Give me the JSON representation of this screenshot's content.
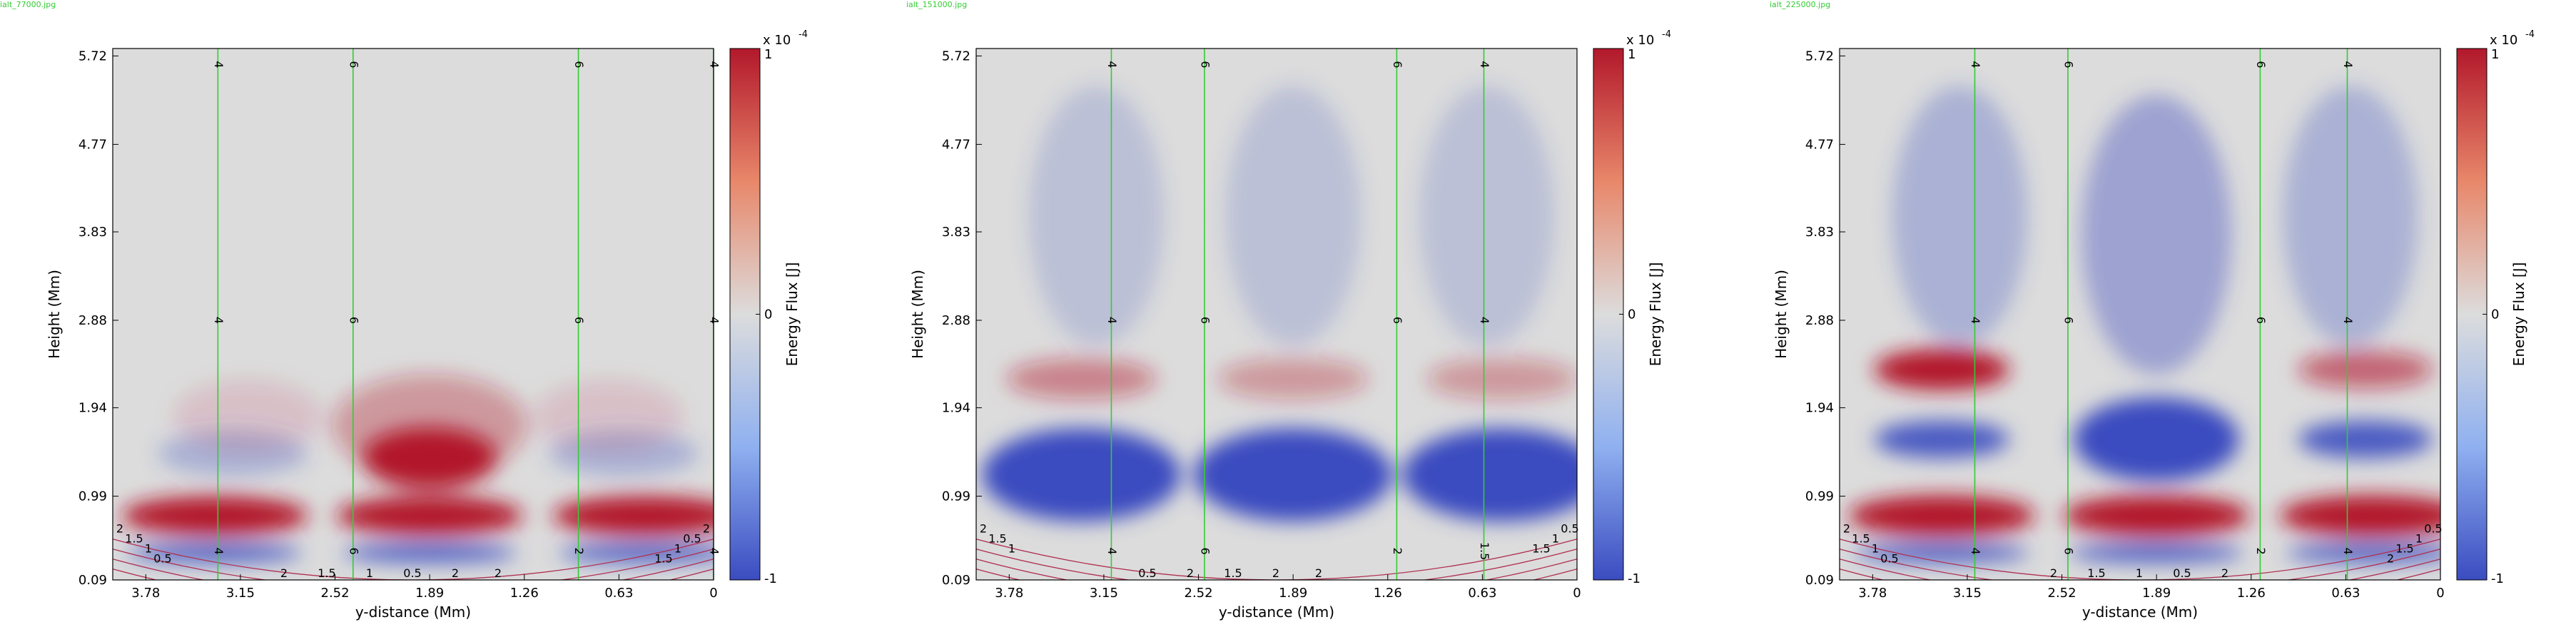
{
  "colors": {
    "background": "#ffffff",
    "neutral": "#dcdcdc",
    "positive": "#b2182b",
    "negative": "#3b4cc0",
    "field_line": "#33cc33",
    "contour": "#b03050",
    "panel_label": "#33cc33"
  },
  "chart_data": [
    {
      "type": "heatmap",
      "panel_label": "ialt_77000.jpg",
      "xlabel": "y-distance (Mm)",
      "ylabel": "Height (Mm)",
      "xticks": [
        "3.78",
        "3.15",
        "2.52",
        "1.89",
        "1.26",
        "0.63",
        "0"
      ],
      "yticks": [
        "0.09",
        "0.99",
        "1.94",
        "2.88",
        "3.83",
        "4.77",
        "5.72"
      ],
      "xlim": [
        4.0,
        0.0
      ],
      "ylim": [
        0.09,
        5.8
      ],
      "colorbar": {
        "label": "Energy Flux [J]",
        "exponent": "x 10",
        "exponent_power": "-4",
        "ticks": [
          "1",
          "0",
          "-1"
        ],
        "range": [
          -1,
          1
        ]
      },
      "field_lines": [
        {
          "x": 3.3,
          "labels": [
            "4",
            "4",
            "4"
          ]
        },
        {
          "x": 2.4,
          "labels": [
            "6",
            "6",
            "6"
          ]
        },
        {
          "x": 0.9,
          "labels": [
            "6",
            "6",
            "2"
          ]
        },
        {
          "x": 0.0,
          "labels": [
            "4",
            "4",
            "4"
          ]
        }
      ],
      "contour_labels": [
        "2",
        "1.5",
        "1",
        "0.5",
        "2",
        "1.5",
        "1",
        "0.5",
        "2",
        "2",
        "1.5",
        "1",
        "0.5",
        "2"
      ],
      "blobs": [
        {
          "x": 3.32,
          "y": 0.78,
          "rx": 0.62,
          "ry": 0.21,
          "value": 1.0
        },
        {
          "x": 1.89,
          "y": 0.78,
          "rx": 0.62,
          "ry": 0.21,
          "value": 1.0
        },
        {
          "x": 0.45,
          "y": 0.78,
          "rx": 0.62,
          "ry": 0.21,
          "value": 1.0
        },
        {
          "x": 3.32,
          "y": 0.38,
          "rx": 0.58,
          "ry": 0.1,
          "value": -0.9
        },
        {
          "x": 1.89,
          "y": 0.38,
          "rx": 0.58,
          "ry": 0.1,
          "value": -0.9
        },
        {
          "x": 0.45,
          "y": 0.38,
          "rx": 0.58,
          "ry": 0.1,
          "value": -0.9
        },
        {
          "x": 1.89,
          "y": 1.4,
          "rx": 0.45,
          "ry": 0.33,
          "value": 1.0
        },
        {
          "x": 1.89,
          "y": 1.75,
          "rx": 0.65,
          "ry": 0.55,
          "value": 0.35
        },
        {
          "x": 3.2,
          "y": 1.45,
          "rx": 0.5,
          "ry": 0.25,
          "value": -0.3
        },
        {
          "x": 0.6,
          "y": 1.45,
          "rx": 0.5,
          "ry": 0.25,
          "value": -0.3
        },
        {
          "x": 3.1,
          "y": 1.85,
          "rx": 0.5,
          "ry": 0.4,
          "value": 0.12
        },
        {
          "x": 0.7,
          "y": 1.85,
          "rx": 0.5,
          "ry": 0.4,
          "value": 0.12
        }
      ]
    },
    {
      "type": "heatmap",
      "panel_label": "ialt_151000.jpg",
      "xlabel": "y-distance (Mm)",
      "ylabel": "Height (Mm)",
      "xticks": [
        "3.78",
        "3.15",
        "2.52",
        "1.89",
        "1.26",
        "0.63",
        "0"
      ],
      "yticks": [
        "0.09",
        "0.99",
        "1.94",
        "2.88",
        "3.83",
        "4.77",
        "5.72"
      ],
      "xlim": [
        4.0,
        0.0
      ],
      "ylim": [
        0.09,
        5.8
      ],
      "colorbar": {
        "label": "Energy Flux [J]",
        "exponent": "x 10",
        "exponent_power": "-4",
        "ticks": [
          "1",
          "0",
          "-1"
        ],
        "range": [
          -1,
          1
        ]
      },
      "field_lines": [
        {
          "x": 3.1,
          "labels": [
            "4",
            "4",
            "4"
          ]
        },
        {
          "x": 2.48,
          "labels": [
            "6",
            "6",
            "6"
          ]
        },
        {
          "x": 1.2,
          "labels": [
            "6",
            "6",
            "2"
          ]
        },
        {
          "x": 0.62,
          "labels": [
            "4",
            "4",
            "1.5"
          ]
        }
      ],
      "contour_labels": [
        "2",
        "1.5",
        "1",
        "0.5",
        "2",
        "1.5",
        "2",
        "2",
        "1.5",
        "1",
        "0.5"
      ],
      "blobs": [
        {
          "x": 3.3,
          "y": 1.22,
          "rx": 0.66,
          "ry": 0.5,
          "value": -1.0
        },
        {
          "x": 1.89,
          "y": 1.22,
          "rx": 0.66,
          "ry": 0.5,
          "value": -1.0
        },
        {
          "x": 0.5,
          "y": 1.22,
          "rx": 0.66,
          "ry": 0.5,
          "value": -1.0
        },
        {
          "x": 3.3,
          "y": 2.25,
          "rx": 0.5,
          "ry": 0.22,
          "value": 0.45
        },
        {
          "x": 1.89,
          "y": 2.25,
          "rx": 0.5,
          "ry": 0.22,
          "value": 0.35
        },
        {
          "x": 0.5,
          "y": 2.25,
          "rx": 0.5,
          "ry": 0.22,
          "value": 0.35
        },
        {
          "x": 3.2,
          "y": 4.0,
          "rx": 0.45,
          "ry": 1.4,
          "value": -0.2
        },
        {
          "x": 1.89,
          "y": 4.0,
          "rx": 0.45,
          "ry": 1.4,
          "value": -0.2
        },
        {
          "x": 0.6,
          "y": 4.0,
          "rx": 0.45,
          "ry": 1.4,
          "value": -0.2
        }
      ]
    },
    {
      "type": "heatmap",
      "panel_label": "ialt_225000.jpg",
      "xlabel": "y-distance (Mm)",
      "ylabel": "Height (Mm)",
      "xticks": [
        "3.78",
        "3.15",
        "2.52",
        "1.89",
        "1.26",
        "0.63",
        "0"
      ],
      "yticks": [
        "0.09",
        "0.99",
        "1.94",
        "2.88",
        "3.83",
        "4.77",
        "5.72"
      ],
      "xlim": [
        4.0,
        0.0
      ],
      "ylim": [
        0.09,
        5.8
      ],
      "colorbar": {
        "label": "Energy Flux [J]",
        "exponent": "x 10",
        "exponent_power": "-4",
        "ticks": [
          "1",
          "0",
          "-1"
        ],
        "range": [
          -1,
          1
        ]
      },
      "field_lines": [
        {
          "x": 3.1,
          "labels": [
            "4",
            "4",
            "4"
          ]
        },
        {
          "x": 2.48,
          "labels": [
            "6",
            "6",
            "6"
          ]
        },
        {
          "x": 1.2,
          "labels": [
            "6",
            "6",
            "2"
          ]
        },
        {
          "x": 0.62,
          "labels": [
            "4",
            "4",
            "4"
          ]
        }
      ],
      "contour_labels": [
        "2",
        "1.5",
        "1",
        "0.5",
        "2",
        "1.5",
        "1",
        "0.5",
        "2",
        "2",
        "1.5",
        "1",
        "0.5"
      ],
      "blobs": [
        {
          "x": 3.32,
          "y": 0.78,
          "rx": 0.62,
          "ry": 0.22,
          "value": 1.0
        },
        {
          "x": 1.89,
          "y": 0.78,
          "rx": 0.62,
          "ry": 0.22,
          "value": 1.0
        },
        {
          "x": 0.45,
          "y": 0.78,
          "rx": 0.62,
          "ry": 0.22,
          "value": 1.0
        },
        {
          "x": 3.32,
          "y": 0.38,
          "rx": 0.58,
          "ry": 0.1,
          "value": -0.9
        },
        {
          "x": 1.89,
          "y": 0.38,
          "rx": 0.58,
          "ry": 0.1,
          "value": -0.9
        },
        {
          "x": 0.45,
          "y": 0.38,
          "rx": 0.58,
          "ry": 0.1,
          "value": -0.9
        },
        {
          "x": 3.32,
          "y": 1.6,
          "rx": 0.45,
          "ry": 0.2,
          "value": -0.9
        },
        {
          "x": 1.89,
          "y": 1.6,
          "rx": 0.55,
          "ry": 0.45,
          "value": -1.0
        },
        {
          "x": 0.5,
          "y": 1.6,
          "rx": 0.45,
          "ry": 0.2,
          "value": -0.9
        },
        {
          "x": 3.32,
          "y": 2.35,
          "rx": 0.45,
          "ry": 0.22,
          "value": 1.0
        },
        {
          "x": 0.5,
          "y": 2.35,
          "rx": 0.45,
          "ry": 0.2,
          "value": 0.6
        },
        {
          "x": 3.2,
          "y": 4.0,
          "rx": 0.45,
          "ry": 1.4,
          "value": -0.3
        },
        {
          "x": 1.89,
          "y": 3.8,
          "rx": 0.5,
          "ry": 1.5,
          "value": -0.4
        },
        {
          "x": 0.6,
          "y": 4.0,
          "rx": 0.45,
          "ry": 1.4,
          "value": -0.3
        }
      ]
    }
  ]
}
